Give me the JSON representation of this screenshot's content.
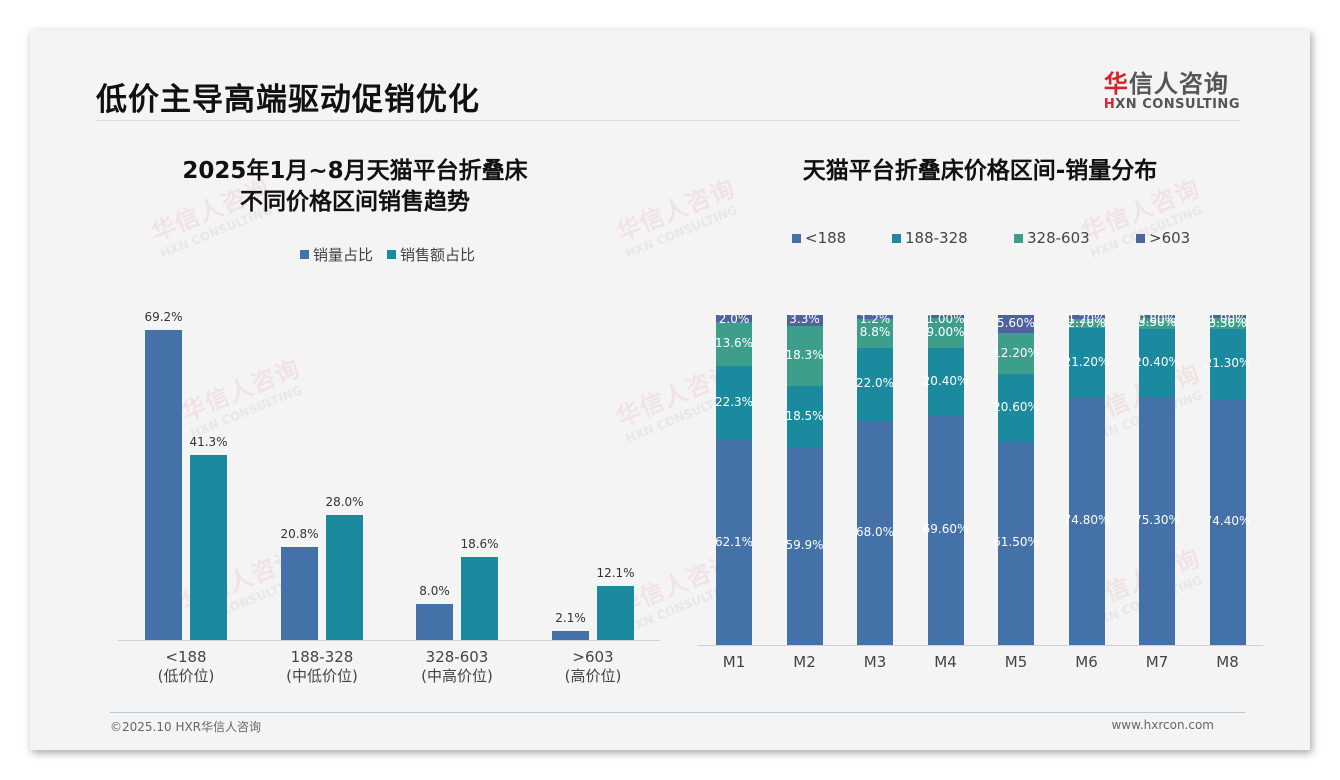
{
  "header": {
    "title": "低价主导高端驱动促销优化",
    "logo_cn_accent": "华",
    "logo_cn_rest": "信人咨询",
    "logo_en_accent": "H",
    "logo_en_rest": "XN CONSULTING"
  },
  "watermark": {
    "cn": "华信人咨询",
    "en": "HXN CONSULTING"
  },
  "left_chart": {
    "title_line1": "2025年1月~8月天猫平台折叠床",
    "title_line2": "不同价格区间销售趋势",
    "legend": [
      {
        "label": "销量占比",
        "color": "#4472a8"
      },
      {
        "label": "销售额占比",
        "color": "#1b8a9e"
      }
    ],
    "categories": [
      {
        "line1": "<188",
        "line2": "(低价位)"
      },
      {
        "line1": "188-328",
        "line2": "(中低价位)"
      },
      {
        "line1": "328-603",
        "line2": "(中高价位)"
      },
      {
        "line1": ">603",
        "line2": "(高价位)"
      }
    ],
    "labels": {
      "s0": [
        "69.2%",
        "20.8%",
        "8.0%",
        "2.1%"
      ],
      "s1": [
        "41.3%",
        "28.0%",
        "18.6%",
        "12.1%"
      ]
    }
  },
  "right_chart": {
    "title": "天猫平台折叠床价格区间-销量分布",
    "legend": [
      {
        "label": "<188",
        "color": "#4472a8"
      },
      {
        "label": "188-328",
        "color": "#1b8a9e"
      },
      {
        "label": "328-603",
        "color": "#3d9e8c"
      },
      {
        "label": ">603",
        "color": "#4e62a0"
      }
    ],
    "months": [
      "M1",
      "M2",
      "M3",
      "M4",
      "M5",
      "M6",
      "M7",
      "M8"
    ]
  },
  "chart_data": [
    {
      "type": "bar",
      "title": "2025年1月~8月天猫平台折叠床 不同价格区间销售趋势",
      "categories": [
        "<188 (低价位)",
        "188-328 (中低价位)",
        "328-603 (中高价位)",
        ">603 (高价位)"
      ],
      "series": [
        {
          "name": "销量占比",
          "values": [
            69.2,
            20.8,
            8.0,
            2.1
          ],
          "color": "#4472a8"
        },
        {
          "name": "销售额占比",
          "values": [
            41.3,
            28.0,
            18.6,
            12.1
          ],
          "color": "#1b8a9e"
        }
      ],
      "xlabel": "",
      "ylabel": "",
      "unit": "%",
      "ylim": [
        0,
        75
      ],
      "grid": false,
      "legend_position": "top"
    },
    {
      "type": "bar",
      "stacked": true,
      "percent": true,
      "title": "天猫平台折叠床价格区间-销量分布",
      "categories": [
        "M1",
        "M2",
        "M3",
        "M4",
        "M5",
        "M6",
        "M7",
        "M8"
      ],
      "series": [
        {
          "name": "<188",
          "values": [
            62.1,
            59.9,
            68.0,
            69.6,
            61.5,
            74.8,
            75.3,
            74.4
          ],
          "labels": [
            "62.1%",
            "59.9%",
            "68.0%",
            "69.60%",
            "61.50%",
            "74.80%",
            "75.30%",
            "74.40%"
          ],
          "color": "#4472a8"
        },
        {
          "name": "188-328",
          "values": [
            22.3,
            18.5,
            22.0,
            20.4,
            20.6,
            21.2,
            20.4,
            21.3
          ],
          "labels": [
            "22.3%",
            "18.5%",
            "22.0%",
            "20.40%",
            "20.60%",
            "21.20%",
            "20.40%",
            "21.30%"
          ],
          "color": "#1b8a9e"
        },
        {
          "name": "328-603",
          "values": [
            13.6,
            18.3,
            8.8,
            9.0,
            12.2,
            2.7,
            3.5,
            3.3
          ],
          "labels": [
            "13.6%",
            "18.3%",
            "8.8%",
            "9.00%",
            "12.20%",
            "2.70%",
            "3.50%",
            "3.30%"
          ],
          "color": "#3d9e8c"
        },
        {
          "name": ">603",
          "values": [
            2.0,
            3.3,
            1.2,
            1.0,
            5.6,
            1.2,
            0.8,
            1.0
          ],
          "labels": [
            "2.0%",
            "3.3%",
            "1.2%",
            "1.00%",
            "5.60%",
            "1.20%",
            "0.80%",
            "1.00%"
          ],
          "color": "#4e62a0"
        }
      ],
      "xlabel": "",
      "ylabel": "",
      "ylim": [
        0,
        100
      ],
      "grid": false,
      "legend_position": "top"
    }
  ],
  "footer": {
    "copyright": "©2025.10 HXR华信人咨询",
    "website": "www.hxrcon.com"
  }
}
